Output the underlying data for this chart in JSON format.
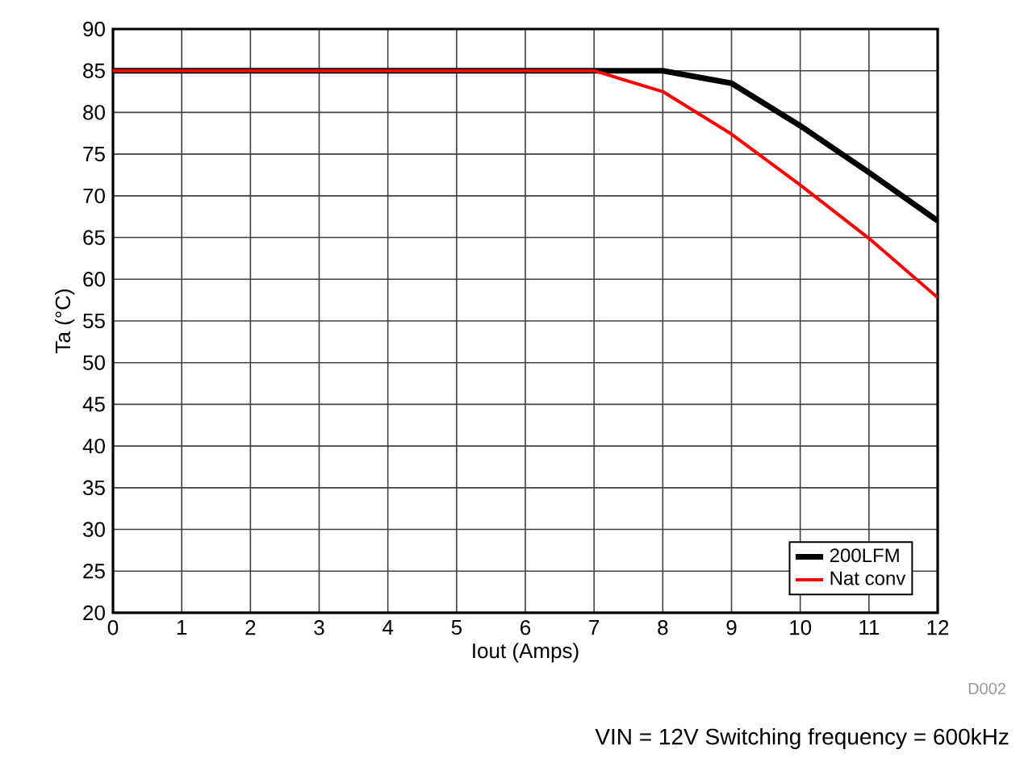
{
  "chart_data": {
    "type": "line",
    "xlabel": "Iout (Amps)",
    "ylabel": "Ta (°C)",
    "xlim": [
      0,
      12
    ],
    "ylim": [
      20,
      90
    ],
    "xticks": [
      0,
      1,
      2,
      3,
      4,
      5,
      6,
      7,
      8,
      9,
      10,
      11,
      12
    ],
    "yticks": [
      20,
      25,
      30,
      35,
      40,
      45,
      50,
      55,
      60,
      65,
      70,
      75,
      80,
      85,
      90
    ],
    "grid": true,
    "legend": "bottom right",
    "marker": "none",
    "line_style": "solid",
    "series": [
      {
        "name": "200LFM",
        "color": "#000000",
        "x": [
          0,
          7,
          8,
          9,
          10,
          11,
          12
        ],
        "values": [
          85,
          85,
          85,
          83.5,
          78.4,
          72.8,
          67
        ]
      },
      {
        "name": "Nat conv",
        "color": "#ff0000",
        "x": [
          0,
          7,
          8,
          9,
          10,
          11,
          12
        ],
        "values": [
          85,
          85,
          82.5,
          77.4,
          71.3,
          64.9,
          57.8
        ]
      }
    ],
    "annotations": [
      "D002",
      "VIN = 12V  Switching frequency = 600kHz"
    ]
  }
}
